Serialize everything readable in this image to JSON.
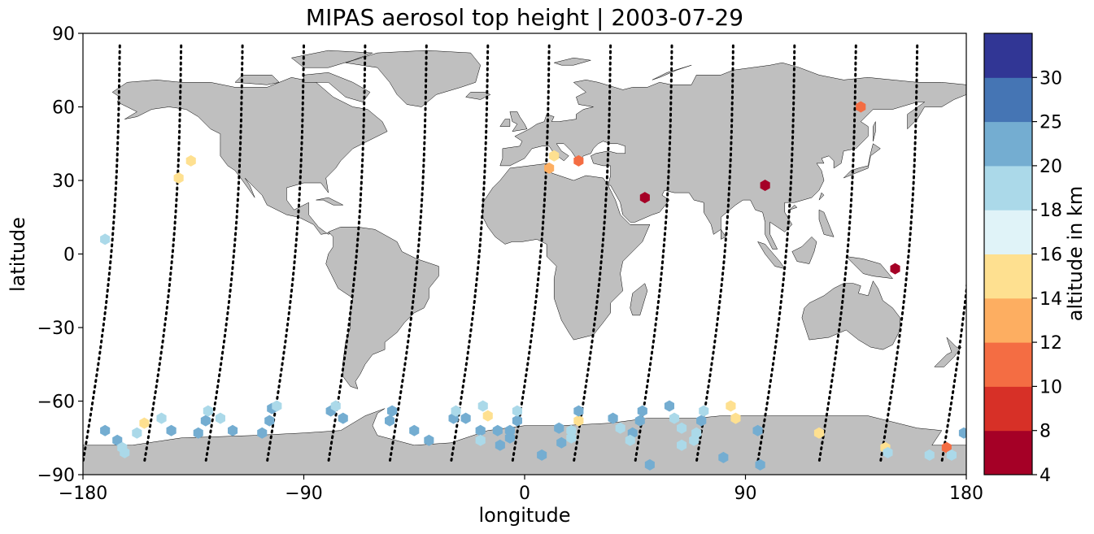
{
  "title": "MIPAS aerosol top height | 2003-07-29",
  "x_axis": {
    "label": "longitude",
    "range": [
      -180,
      180
    ],
    "ticks": [
      {
        "value": -180,
        "label": "−180"
      },
      {
        "value": -90,
        "label": "−90"
      },
      {
        "value": 0,
        "label": "0"
      },
      {
        "value": 90,
        "label": "90"
      },
      {
        "value": 180,
        "label": "180"
      }
    ]
  },
  "y_axis": {
    "label": "latitude",
    "range": [
      -90,
      90
    ],
    "ticks": [
      {
        "value": 90,
        "label": "90"
      },
      {
        "value": 60,
        "label": "60"
      },
      {
        "value": 30,
        "label": "30"
      },
      {
        "value": 0,
        "label": "0"
      },
      {
        "value": -30,
        "label": "−30"
      },
      {
        "value": -60,
        "label": "−60"
      },
      {
        "value": -90,
        "label": "−90"
      }
    ]
  },
  "colorbar": {
    "label": "altitude in km",
    "levels": [
      4,
      8,
      10,
      12,
      14,
      16,
      18,
      20,
      25,
      30
    ],
    "tick_labels": [
      "4",
      "8",
      "10",
      "12",
      "14",
      "16",
      "18",
      "20",
      "25",
      "30"
    ],
    "colors": [
      "#a50026",
      "#d73027",
      "#f46d43",
      "#fdae61",
      "#fee090",
      "#e0f3f8",
      "#abd9e9",
      "#74add1",
      "#4575b4",
      "#313695"
    ]
  },
  "land_color": "#bfbfbf",
  "chart_data": {
    "type": "scatter",
    "title": "MIPAS aerosol top height | 2003-07-29",
    "xlabel": "longitude",
    "ylabel": "latitude",
    "xlim": [
      -180,
      180
    ],
    "ylim": [
      -90,
      90
    ],
    "grid": false,
    "colorbar_label": "altitude in km",
    "colorbar_levels": [
      4,
      8,
      10,
      12,
      14,
      16,
      18,
      20,
      25,
      30
    ],
    "points": [
      {
        "lon": -171,
        "lat": 6,
        "alt": 19
      },
      {
        "lon": -141,
        "lat": 31,
        "alt": 15
      },
      {
        "lon": -136,
        "lat": 38,
        "alt": 15
      },
      {
        "lon": 10,
        "lat": 35,
        "alt": 13
      },
      {
        "lon": 12,
        "lat": 40,
        "alt": 15
      },
      {
        "lon": 22,
        "lat": 38,
        "alt": 11
      },
      {
        "lon": 49,
        "lat": 23,
        "alt": 6
      },
      {
        "lon": 98,
        "lat": 28,
        "alt": 6
      },
      {
        "lon": 137,
        "lat": 60,
        "alt": 11
      },
      {
        "lon": 151,
        "lat": -6,
        "alt": 6
      },
      {
        "lon": 172,
        "lat": -79,
        "alt": 11
      },
      {
        "lon": 179,
        "lat": -73,
        "alt": 22
      },
      {
        "lon": -171,
        "lat": -72,
        "alt": 22
      },
      {
        "lon": -166,
        "lat": -76,
        "alt": 22
      },
      {
        "lon": -164,
        "lat": -79,
        "alt": 19
      },
      {
        "lon": -163,
        "lat": -81,
        "alt": 19
      },
      {
        "lon": -158,
        "lat": -73,
        "alt": 19
      },
      {
        "lon": -155,
        "lat": -69,
        "alt": 15
      },
      {
        "lon": -148,
        "lat": -67,
        "alt": 19
      },
      {
        "lon": -144,
        "lat": -72,
        "alt": 22
      },
      {
        "lon": -133,
        "lat": -73,
        "alt": 22
      },
      {
        "lon": -130,
        "lat": -68,
        "alt": 22
      },
      {
        "lon": -129,
        "lat": -64,
        "alt": 19
      },
      {
        "lon": -124,
        "lat": -67,
        "alt": 19
      },
      {
        "lon": -119,
        "lat": -72,
        "alt": 22
      },
      {
        "lon": -107,
        "lat": -73,
        "alt": 22
      },
      {
        "lon": -104,
        "lat": -68,
        "alt": 22
      },
      {
        "lon": -103,
        "lat": -63,
        "alt": 22
      },
      {
        "lon": -101,
        "lat": -62,
        "alt": 19
      },
      {
        "lon": -79,
        "lat": -64,
        "alt": 22
      },
      {
        "lon": -77,
        "lat": -62,
        "alt": 19
      },
      {
        "lon": -74,
        "lat": -67,
        "alt": 22
      },
      {
        "lon": -54,
        "lat": -64,
        "alt": 22
      },
      {
        "lon": -55,
        "lat": -68,
        "alt": 22
      },
      {
        "lon": -45,
        "lat": -72,
        "alt": 22
      },
      {
        "lon": -39,
        "lat": -76,
        "alt": 22
      },
      {
        "lon": -29,
        "lat": -67,
        "alt": 22
      },
      {
        "lon": -28,
        "lat": -64,
        "alt": 19
      },
      {
        "lon": -24,
        "lat": -67,
        "alt": 22
      },
      {
        "lon": -17,
        "lat": -62,
        "alt": 19
      },
      {
        "lon": -15,
        "lat": -66,
        "alt": 15
      },
      {
        "lon": -18,
        "lat": -72,
        "alt": 22
      },
      {
        "lon": -18,
        "lat": -76,
        "alt": 19
      },
      {
        "lon": -11,
        "lat": -72,
        "alt": 22
      },
      {
        "lon": -10,
        "lat": -78,
        "alt": 22
      },
      {
        "lon": -6,
        "lat": -72,
        "alt": 22
      },
      {
        "lon": -6,
        "lat": -75,
        "alt": 22
      },
      {
        "lon": -3,
        "lat": -68,
        "alt": 22
      },
      {
        "lon": -3,
        "lat": -64,
        "alt": 19
      },
      {
        "lon": 7,
        "lat": -82,
        "alt": 22
      },
      {
        "lon": 14,
        "lat": -71,
        "alt": 22
      },
      {
        "lon": 15,
        "lat": -77,
        "alt": 22
      },
      {
        "lon": 19,
        "lat": -72,
        "alt": 19
      },
      {
        "lon": 19,
        "lat": -75,
        "alt": 19
      },
      {
        "lon": 22,
        "lat": -68,
        "alt": 15
      },
      {
        "lon": 22,
        "lat": -64,
        "alt": 22
      },
      {
        "lon": 36,
        "lat": -67,
        "alt": 22
      },
      {
        "lon": 39,
        "lat": -71,
        "alt": 19
      },
      {
        "lon": 44,
        "lat": -73,
        "alt": 22
      },
      {
        "lon": 43,
        "lat": -76,
        "alt": 19
      },
      {
        "lon": 47,
        "lat": -68,
        "alt": 22
      },
      {
        "lon": 48,
        "lat": -64,
        "alt": 22
      },
      {
        "lon": 51,
        "lat": -86,
        "alt": 22
      },
      {
        "lon": 59,
        "lat": -62,
        "alt": 22
      },
      {
        "lon": 61,
        "lat": -67,
        "alt": 19
      },
      {
        "lon": 64,
        "lat": -71,
        "alt": 19
      },
      {
        "lon": 64,
        "lat": -78,
        "alt": 19
      },
      {
        "lon": 69,
        "lat": -76,
        "alt": 19
      },
      {
        "lon": 70,
        "lat": -73,
        "alt": 19
      },
      {
        "lon": 72,
        "lat": -68,
        "alt": 22
      },
      {
        "lon": 73,
        "lat": -64,
        "alt": 19
      },
      {
        "lon": 81,
        "lat": -83,
        "alt": 22
      },
      {
        "lon": 84,
        "lat": -62,
        "alt": 15
      },
      {
        "lon": 86,
        "lat": -67,
        "alt": 15
      },
      {
        "lon": 95,
        "lat": -72,
        "alt": 22
      },
      {
        "lon": 96,
        "lat": -86,
        "alt": 22
      },
      {
        "lon": 120,
        "lat": -73,
        "alt": 15
      },
      {
        "lon": 147,
        "lat": -79,
        "alt": 15
      },
      {
        "lon": 148,
        "lat": -81,
        "alt": 19
      },
      {
        "lon": 165,
        "lat": -82,
        "alt": 19
      },
      {
        "lon": 174,
        "lat": -82,
        "alt": 19
      }
    ]
  }
}
